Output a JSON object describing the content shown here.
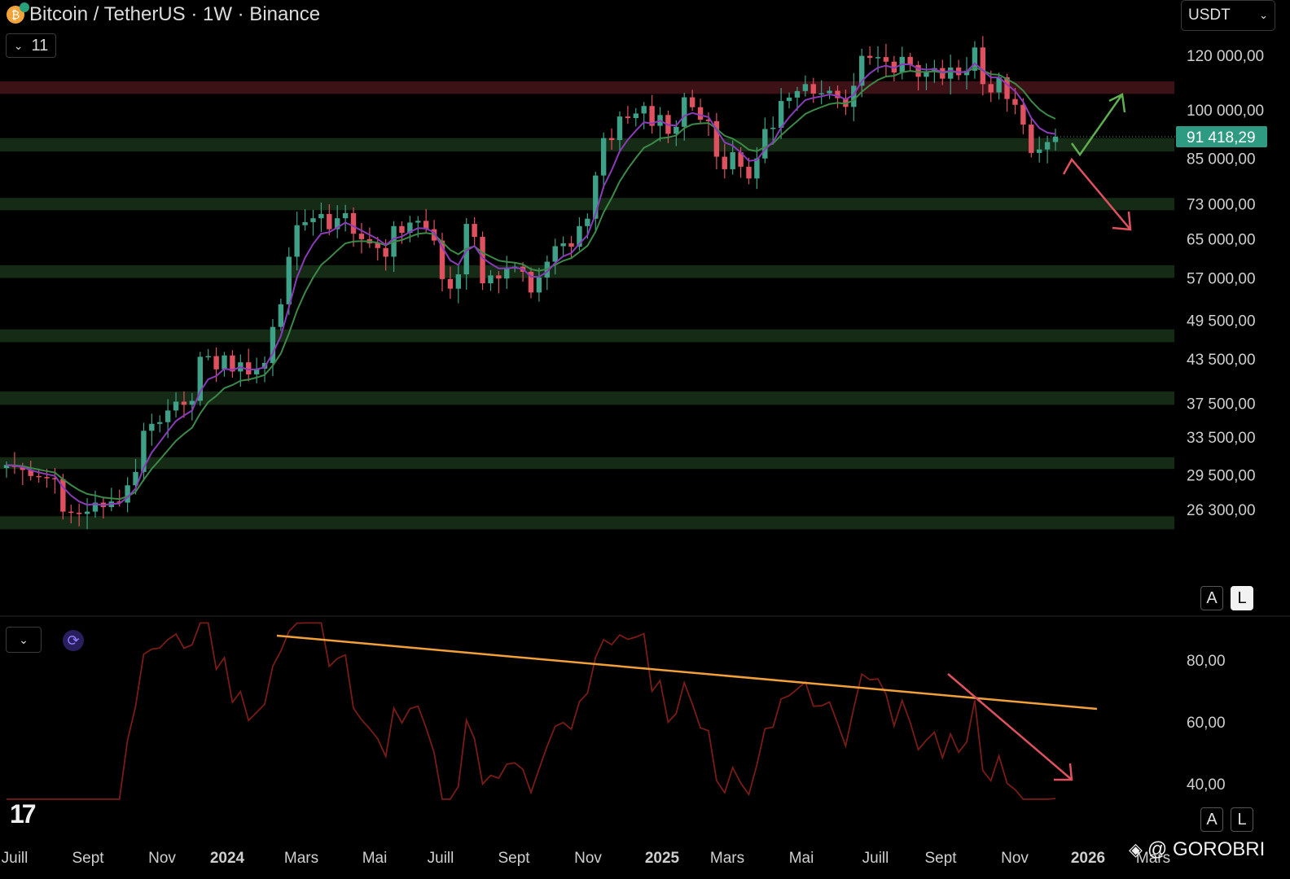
{
  "header": {
    "title": "Bitcoin / TetherUS · 1W · Binance",
    "indicator_count": "11",
    "currency": "USDT"
  },
  "price_scale": {
    "labels": [
      "120 000,00",
      "100 000,00",
      "85 000,00",
      "73 000,00",
      "65 000,00",
      "57 000,00",
      "49 500,00",
      "43 500,00",
      "37 500,00",
      "33 500,00",
      "29 500,00",
      "26 300,00"
    ],
    "values": [
      120000,
      100000,
      85000,
      73000,
      65000,
      57000,
      49500,
      43500,
      37500,
      33500,
      29500,
      26300
    ],
    "current_label": "91 418,29",
    "current_value": 91418.29,
    "current_color": "#2e9a82"
  },
  "rsi_scale": {
    "labels": [
      "80,00",
      "60,00",
      "40,00"
    ],
    "values": [
      80,
      60,
      40
    ]
  },
  "time_axis": {
    "labels": [
      "Juill",
      "Sept",
      "Nov",
      "2024",
      "Mars",
      "Mai",
      "Juill",
      "Sept",
      "Nov",
      "2025",
      "Mars",
      "Mai",
      "Juill",
      "Sept",
      "Nov",
      "2026",
      "Mars"
    ],
    "bold": [
      false,
      false,
      false,
      true,
      false,
      false,
      false,
      false,
      false,
      true,
      false,
      false,
      false,
      false,
      false,
      true,
      false
    ]
  },
  "buttons": {
    "auto": "A",
    "log": "L"
  },
  "watermark": "@ GOROBRI",
  "chart_data": {
    "type": "candlestick",
    "timeframe": "1W",
    "log_scale": true,
    "colors": {
      "up": "#3fa088",
      "down": "#e0515f",
      "ema_fast": "#8a3bb8",
      "ema_slow": "#3c8a48",
      "rsi": "#7a1c16",
      "trendline": "#f2a13a",
      "zone_green": "#152b15",
      "zone_red": "#3d1216"
    },
    "zones": [
      {
        "low": 105500,
        "high": 110000,
        "color": "red"
      },
      {
        "low": 87000,
        "high": 91000,
        "color": "green"
      },
      {
        "low": 71500,
        "high": 74500,
        "color": "green"
      },
      {
        "low": 57000,
        "high": 59500,
        "color": "green"
      },
      {
        "low": 46000,
        "high": 48000,
        "color": "green"
      },
      {
        "low": 37300,
        "high": 39000,
        "color": "green"
      },
      {
        "low": 30100,
        "high": 31300,
        "color": "green"
      },
      {
        "low": 24600,
        "high": 25700,
        "color": "green"
      }
    ],
    "weekly_close": [
      30500,
      30300,
      30000,
      29400,
      29300,
      29200,
      29100,
      26100,
      26000,
      25900,
      26100,
      26900,
      26500,
      27000,
      26900,
      28500,
      29800,
      34200,
      35000,
      35200,
      36600,
      37700,
      37300,
      37800,
      43800,
      43900,
      42000,
      44000,
      41700,
      43000,
      41300,
      42100,
      42900,
      48400,
      52200,
      61200,
      68000,
      68700,
      69600,
      70600,
      67100,
      69600,
      70800,
      66100,
      64900,
      64000,
      63000,
      61200,
      67800,
      66300,
      68600,
      69000,
      67100,
      64600,
      56800,
      55000,
      57700,
      68300,
      65400,
      56000,
      57500,
      56900,
      59000,
      59200,
      58200,
      54300,
      57100,
      60200,
      63400,
      64000,
      63300,
      67800,
      69500,
      80300,
      91000,
      90400,
      97800,
      97300,
      98800,
      101300,
      94800,
      98300,
      92300,
      94500,
      104300,
      100900,
      96800,
      96300,
      85500,
      82000,
      86800,
      82700,
      79500,
      85000,
      93800,
      94200,
      103000,
      104200,
      106500,
      109000,
      105600,
      105700,
      106600,
      104000,
      101000,
      108400,
      119800,
      119000,
      119300,
      117500,
      113300,
      119400,
      116200,
      111700,
      113500,
      115000,
      111000,
      115200,
      112300,
      114000,
      123200,
      109000,
      106000,
      111500,
      103700,
      101700,
      95200,
      86600,
      87600,
      89800,
      91418
    ]
  }
}
